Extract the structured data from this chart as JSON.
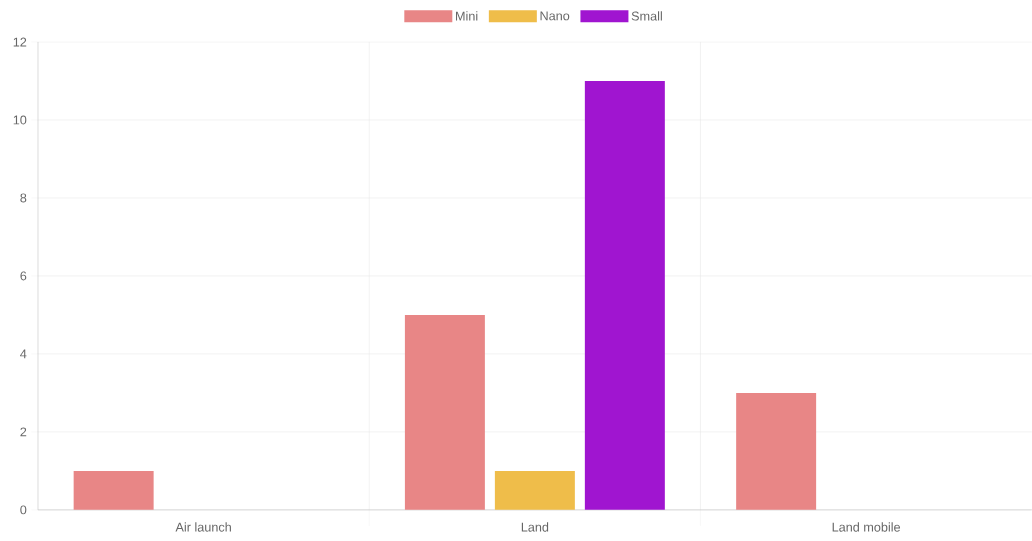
{
  "chart_data": {
    "type": "bar",
    "categories": [
      "Air launch",
      "Land",
      "Land mobile"
    ],
    "series": [
      {
        "name": "Mini",
        "color": "#e88686",
        "values": [
          1,
          5,
          3
        ]
      },
      {
        "name": "Nano",
        "color": "#efbd4a",
        "values": [
          null,
          1,
          null
        ]
      },
      {
        "name": "Small",
        "color": "#a015d0",
        "values": [
          null,
          11,
          null
        ]
      }
    ],
    "ylim": [
      0,
      12
    ],
    "yticks": [
      0,
      2,
      4,
      6,
      8,
      10,
      12
    ],
    "grid": true,
    "legend": "top"
  }
}
